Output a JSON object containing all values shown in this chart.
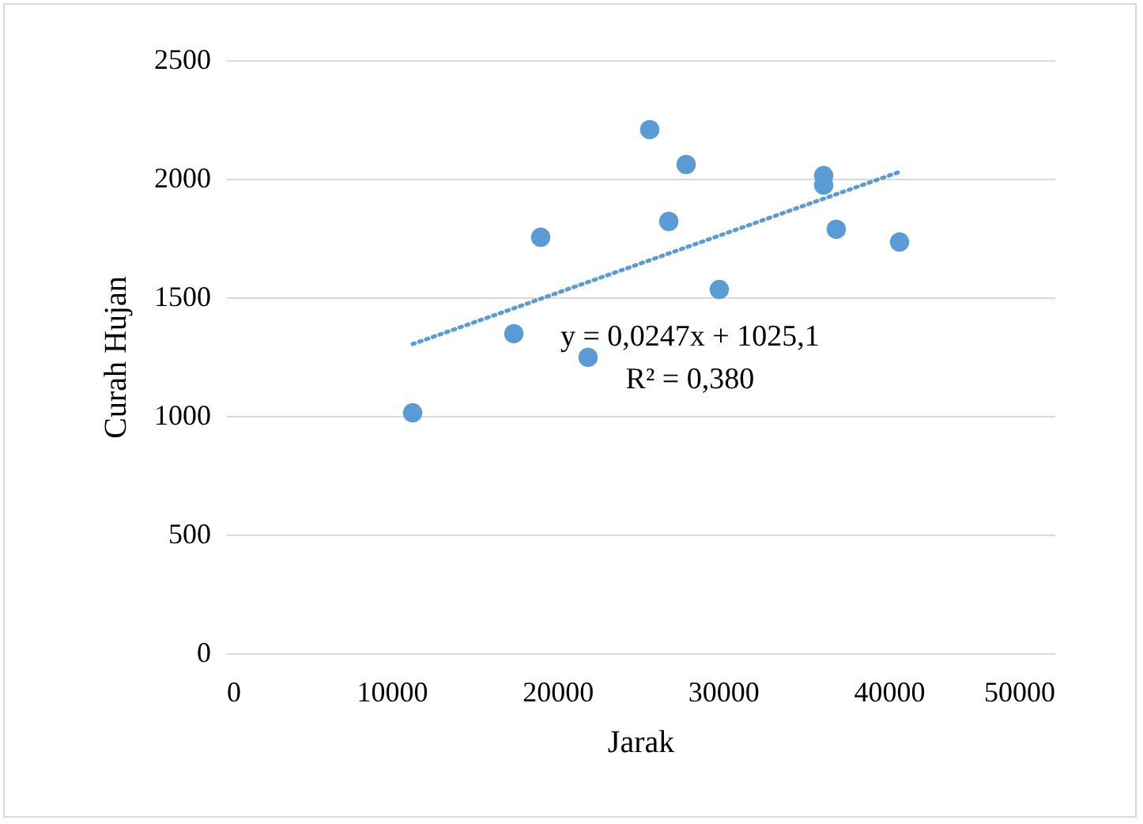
{
  "chart_data": {
    "type": "scatter",
    "xlabel": "Jarak",
    "ylabel": "Curah Hujan",
    "xlim": [
      0,
      50000
    ],
    "xticks": [
      0,
      10000,
      20000,
      30000,
      40000,
      50000
    ],
    "ylim": [
      0,
      2500
    ],
    "yticks": [
      0,
      500,
      1000,
      1500,
      2000,
      2500
    ],
    "grid": "y",
    "annotations": [
      "y = 0,0247x + 1025,1",
      "R² = 0,380"
    ],
    "series": [
      {
        "color": "#5b9bd5",
        "marker": "circle",
        "x": [
          11260,
          17370,
          18990,
          21850,
          25570,
          26720,
          27770,
          29770,
          36070,
          36070,
          36830,
          40650
        ],
        "values": [
          1013,
          1347,
          1753,
          1247,
          2207,
          1820,
          2060,
          1533,
          2013,
          1973,
          1787,
          1733
        ]
      },
      {
        "type": "line",
        "color": "#5b9bd5",
        "line_style": "dotted",
        "marker": "none",
        "x": [
          11260,
          40650
        ],
        "values": [
          1303,
          2029
        ]
      }
    ]
  }
}
